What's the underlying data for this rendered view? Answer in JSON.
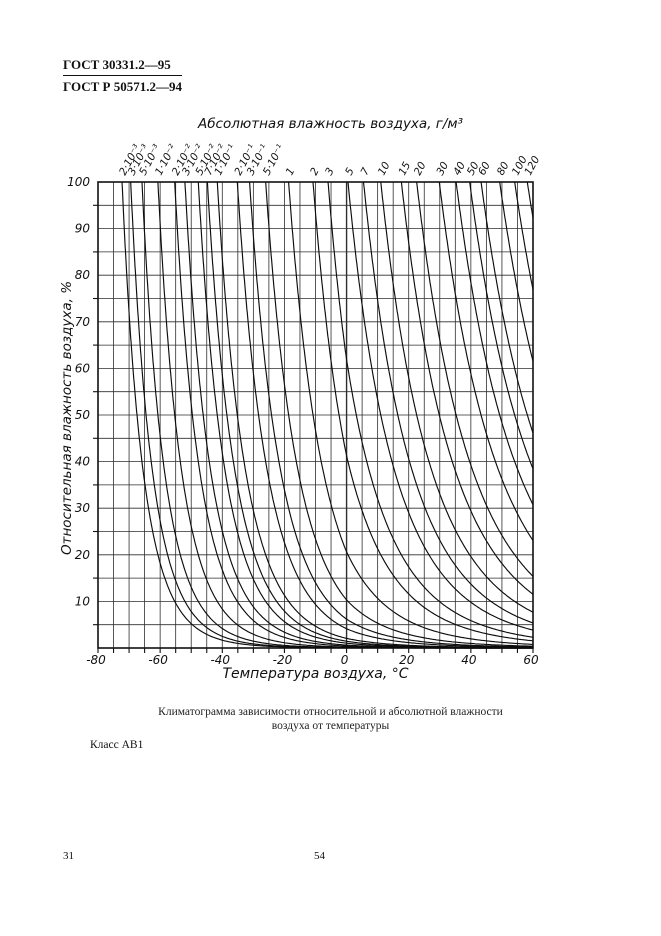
{
  "header": {
    "line1": "ГОСТ 30331.2—95",
    "line2": "ГОСТ Р 50571.2—94"
  },
  "caption": {
    "line1": "Климатограмма зависимости относительной и абсолютной влажности",
    "line2": "воздуха от температуры"
  },
  "class_label": "Класс АВ1",
  "footer": {
    "page_left": "31",
    "page_center": "54"
  },
  "chart_data": {
    "type": "line",
    "title_top": "Абсолютная влажность воздуха, г/м³",
    "xlabel": "Температура воздуха, °С",
    "ylabel": "Относительная влажность воздуха, %",
    "grid": true,
    "x_axis": {
      "min": -80,
      "max": 60,
      "grid_step": 5,
      "major_tick_labels": [
        -80,
        -60,
        -40,
        -20,
        0,
        20,
        40,
        60
      ]
    },
    "y_axis": {
      "min": 0,
      "max": 100,
      "grid_step": 5,
      "major_tick_labels": [
        100,
        90,
        80,
        70,
        60,
        50,
        40,
        30,
        20,
        10
      ]
    },
    "series_unit": "г/м³",
    "curve_model": "relative_humidity(T) = 100·a/a_sat(T); a_sat = saturation absolute humidity (Magnus formula, over ice below 0 °C); each curve enters at the top axis where a_sat(T) equals its value",
    "series": [
      {
        "label": "2·10⁻³",
        "value": 0.002
      },
      {
        "label": "3·10⁻³",
        "value": 0.003
      },
      {
        "label": "5·10⁻³",
        "value": 0.005
      },
      {
        "label": "1·10⁻²",
        "value": 0.01
      },
      {
        "label": "2·10⁻²",
        "value": 0.02
      },
      {
        "label": "3·10⁻²",
        "value": 0.03
      },
      {
        "label": "5·10⁻²",
        "value": 0.05
      },
      {
        "label": "7·10⁻²",
        "value": 0.07
      },
      {
        "label": "1·10⁻¹",
        "value": 0.1
      },
      {
        "label": "2·10⁻¹",
        "value": 0.2
      },
      {
        "label": "3·10⁻¹",
        "value": 0.3
      },
      {
        "label": "5·10⁻¹",
        "value": 0.5
      },
      {
        "label": "1",
        "value": 1
      },
      {
        "label": "2",
        "value": 2
      },
      {
        "label": "3",
        "value": 3
      },
      {
        "label": "5",
        "value": 5
      },
      {
        "label": "7",
        "value": 7
      },
      {
        "label": "10",
        "value": 10
      },
      {
        "label": "15",
        "value": 15
      },
      {
        "label": "20",
        "value": 20
      },
      {
        "label": "30",
        "value": 30
      },
      {
        "label": "40",
        "value": 40
      },
      {
        "label": "50",
        "value": 50
      },
      {
        "label": "60",
        "value": 60
      },
      {
        "label": "80",
        "value": 80
      },
      {
        "label": "100",
        "value": 100
      },
      {
        "label": "120",
        "value": 120
      }
    ]
  }
}
